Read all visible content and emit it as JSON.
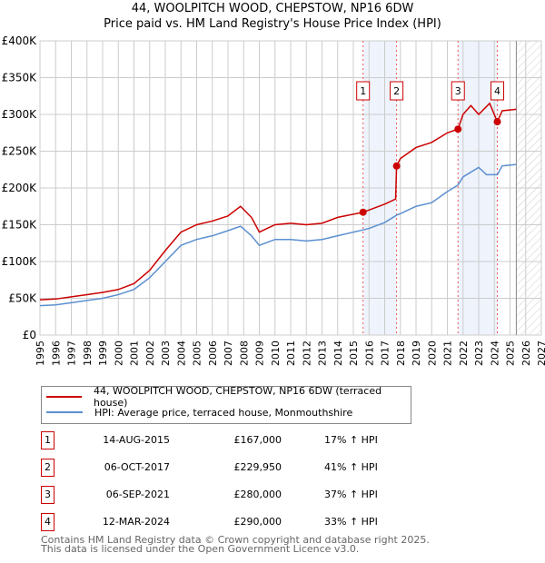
{
  "title": "44, WOOLPITCH WOOD, CHEPSTOW, NP16 6DW",
  "subtitle": "Price paid vs. HM Land Registry's House Price Index (HPI)",
  "chart_data": {
    "type": "line",
    "title": "44, WOOLPITCH WOOD, CHEPSTOW, NP16 6DW",
    "subtitle": "Price paid vs. HM Land Registry's House Price Index (HPI)",
    "xlim": [
      1995,
      2027
    ],
    "ylim": [
      0,
      400000
    ],
    "x_ticks": [
      "1995",
      "1996",
      "1997",
      "1998",
      "1999",
      "2000",
      "2001",
      "2002",
      "2003",
      "2004",
      "2005",
      "2006",
      "2007",
      "2008",
      "2009",
      "2010",
      "2011",
      "2012",
      "2013",
      "2014",
      "2015",
      "2016",
      "2017",
      "2018",
      "2019",
      "2020",
      "2021",
      "2022",
      "2023",
      "2024",
      "2025",
      "2026",
      "2027"
    ],
    "y_ticks": [
      {
        "v": 0,
        "l": "£0"
      },
      {
        "v": 50000,
        "l": "£50K"
      },
      {
        "v": 100000,
        "l": "£100K"
      },
      {
        "v": 150000,
        "l": "£150K"
      },
      {
        "v": 200000,
        "l": "£200K"
      },
      {
        "v": 250000,
        "l": "£250K"
      },
      {
        "v": 300000,
        "l": "£300K"
      },
      {
        "v": 350000,
        "l": "£350K"
      },
      {
        "v": 400000,
        "l": "£400K"
      }
    ],
    "grid": true,
    "shaded_ranges": [
      [
        2015.62,
        2017.76
      ],
      [
        2021.68,
        2024.19
      ]
    ],
    "forecast_hatch_from": 2025.4,
    "series": [
      {
        "name": "44, WOOLPITCH WOOD, CHEPSTOW, NP16 6DW (terraced house)",
        "color": "#cc0000",
        "x": [
          1995,
          1996,
          1997,
          1998,
          1999,
          2000,
          2001,
          2002,
          2003,
          2004,
          2005,
          2006,
          2007,
          2007.8,
          2008.5,
          2009,
          2010,
          2011,
          2012,
          2013,
          2014,
          2015.62,
          2016,
          2017,
          2017.7,
          2017.76,
          2018,
          2019,
          2020,
          2021,
          2021.68,
          2022,
          2022.5,
          2023,
          2023.7,
          2024.19,
          2024.5,
          2025.4
        ],
        "y": [
          48000,
          49000,
          52000,
          55000,
          58000,
          62000,
          70000,
          88000,
          115000,
          140000,
          150000,
          155000,
          162000,
          175000,
          160000,
          140000,
          150000,
          152000,
          150000,
          152000,
          160000,
          167000,
          170000,
          178000,
          185000,
          229950,
          240000,
          255000,
          262000,
          275000,
          280000,
          300000,
          312000,
          300000,
          315000,
          290000,
          305000,
          307000
        ]
      },
      {
        "name": "HPI: Average price, terraced house, Monmouthshire",
        "color": "#5b8fd0",
        "x": [
          1995,
          1996,
          1997,
          1998,
          1999,
          2000,
          2001,
          2002,
          2003,
          2004,
          2005,
          2006,
          2007,
          2007.8,
          2008.5,
          2009,
          2010,
          2011,
          2012,
          2013,
          2014,
          2015.62,
          2016,
          2017,
          2017.76,
          2018,
          2019,
          2020,
          2021,
          2021.68,
          2022,
          2023,
          2023.5,
          2024.19,
          2024.5,
          2025.4
        ],
        "y": [
          40000,
          41000,
          44000,
          47000,
          50000,
          55000,
          62000,
          78000,
          100000,
          122000,
          130000,
          135000,
          142000,
          148000,
          135000,
          122000,
          130000,
          130000,
          128000,
          130000,
          135000,
          143000,
          145000,
          153000,
          163000,
          165000,
          175000,
          180000,
          195000,
          204000,
          215000,
          228000,
          218000,
          218000,
          230000,
          232000
        ]
      }
    ],
    "sales": [
      {
        "label": "1",
        "x": 2015.62,
        "y": 167000
      },
      {
        "label": "2",
        "x": 2017.76,
        "y": 229950
      },
      {
        "label": "3",
        "x": 2021.68,
        "y": 280000
      },
      {
        "label": "4",
        "x": 2024.19,
        "y": 290000
      }
    ],
    "legend_position": "below"
  },
  "legend": {
    "property": "44, WOOLPITCH WOOD, CHEPSTOW, NP16 6DW (terraced house)",
    "hpi": "HPI: Average price, terraced house, Monmouthshire"
  },
  "transactions": [
    {
      "n": "1",
      "date": "14-AUG-2015",
      "price": "£167,000",
      "hpi": "17% ↑ HPI"
    },
    {
      "n": "2",
      "date": "06-OCT-2017",
      "price": "£229,950",
      "hpi": "41% ↑ HPI"
    },
    {
      "n": "3",
      "date": "06-SEP-2021",
      "price": "£280,000",
      "hpi": "37% ↑ HPI"
    },
    {
      "n": "4",
      "date": "12-MAR-2024",
      "price": "£290,000",
      "hpi": "33% ↑ HPI"
    }
  ],
  "footer": {
    "line1": "Contains HM Land Registry data © Crown copyright and database right 2025.",
    "line2": "This data is licensed under the Open Government Licence v3.0."
  }
}
